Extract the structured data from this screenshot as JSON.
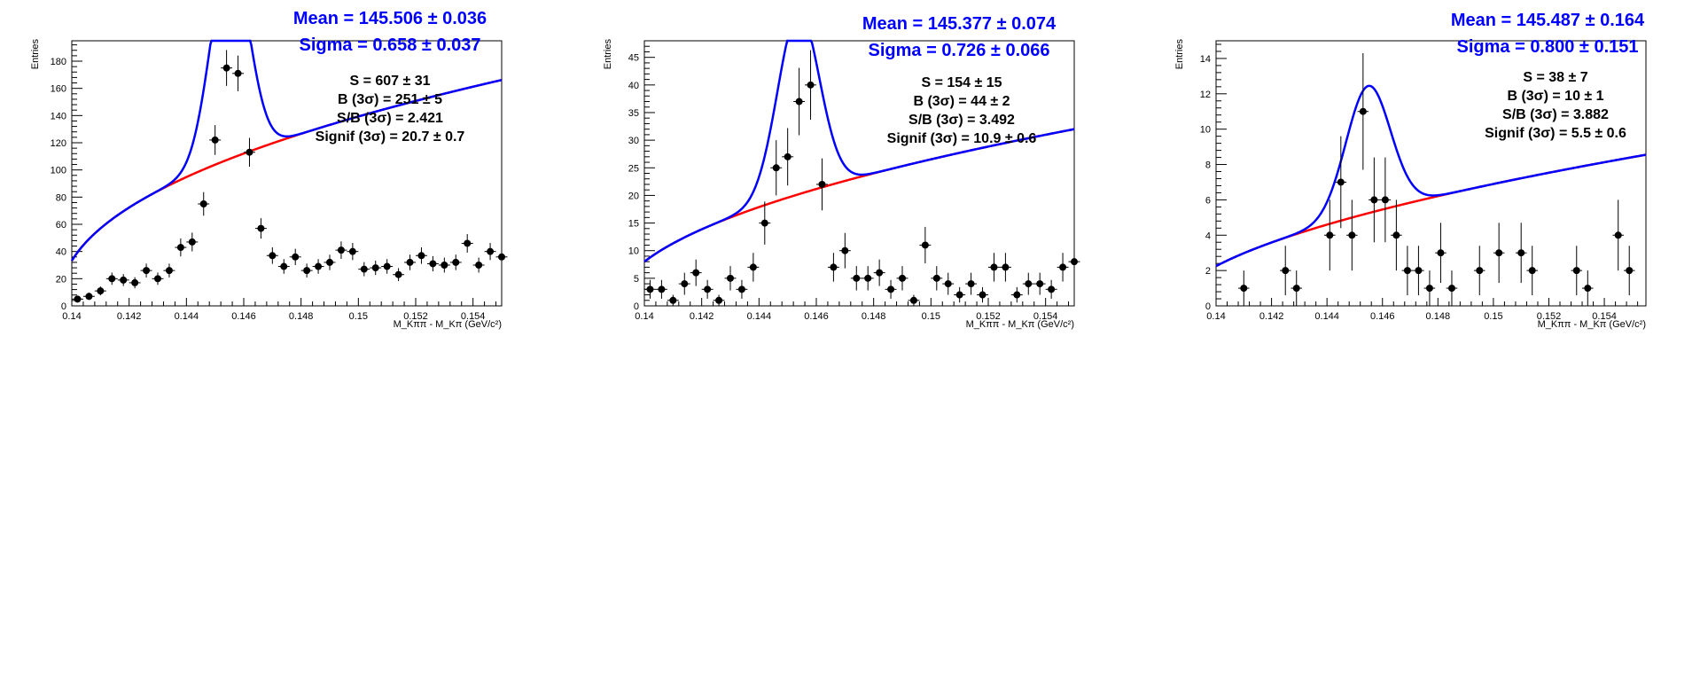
{
  "colors": {
    "fit_total": "#0000ff",
    "fit_background": "#ff0000",
    "points": "#000000",
    "text_blue": "#0000ff"
  },
  "chart_data": [
    {
      "type": "scatter",
      "fit_labels": {
        "mean": "Mean = 145.506 ± 0.036",
        "sigma": "Sigma = 0.658 ± 0.037"
      },
      "stats": [
        "S = 607 ± 31",
        "B (3σ) = 251 ± 5",
        "S/B (3σ) = 2.421",
        "Signif (3σ) = 20.7 ± 0.7"
      ],
      "ylabel": "Entries",
      "xlabel": "M_Kππ - M_Kπ (GeV/c²)",
      "xlim": [
        0.14,
        0.155
      ],
      "ylim": [
        0,
        195
      ],
      "xticks": [
        "0.14",
        "0.142",
        "0.144",
        "0.146",
        "0.148",
        "0.15",
        "0.152",
        "0.154"
      ],
      "xtick_values": [
        0.14,
        0.142,
        0.144,
        0.146,
        0.148,
        0.15,
        0.152,
        0.154
      ],
      "yticks": [
        "0",
        "20",
        "40",
        "60",
        "80",
        "100",
        "120",
        "140",
        "160",
        "180"
      ],
      "ytick_values": [
        0,
        20,
        40,
        60,
        80,
        100,
        120,
        140,
        160,
        180
      ],
      "x": [
        0.1402,
        0.1406,
        0.141,
        0.1414,
        0.1418,
        0.1422,
        0.1426,
        0.143,
        0.1434,
        0.1438,
        0.1442,
        0.1446,
        0.145,
        0.1454,
        0.1458,
        0.1462,
        0.1466,
        0.147,
        0.1474,
        0.1478,
        0.1482,
        0.1486,
        0.149,
        0.1494,
        0.1498,
        0.1502,
        0.1506,
        0.151,
        0.1514,
        0.1518,
        0.1522,
        0.1526,
        0.153,
        0.1534,
        0.1538,
        0.1542,
        0.1546,
        0.155
      ],
      "y": [
        5,
        7,
        11,
        20,
        19,
        17,
        26,
        20,
        26,
        43,
        47,
        75,
        122,
        175,
        171,
        113,
        57,
        37,
        29,
        36,
        26,
        29,
        32,
        41,
        40,
        27,
        28,
        29,
        23,
        32,
        37,
        31,
        30,
        32,
        46,
        30,
        40,
        36
      ],
      "y_err": [
        2.2,
        2.6,
        3.3,
        4.5,
        4.4,
        4.1,
        5.1,
        4.5,
        5.1,
        6.6,
        6.9,
        8.7,
        11.0,
        13.2,
        13.1,
        10.6,
        7.5,
        6.1,
        5.4,
        6.0,
        5.1,
        5.4,
        5.7,
        6.4,
        6.3,
        5.2,
        5.3,
        5.4,
        4.8,
        5.7,
        6.1,
        5.6,
        5.5,
        5.7,
        6.8,
        5.5,
        6.3,
        6.0
      ],
      "fit": {
        "mean": 0.145506,
        "sigma": 0.000658,
        "amplitude": 151,
        "bkg_coef": 48.5,
        "bkg_power": 0.45,
        "threshold": 0.13957
      }
    },
    {
      "type": "scatter",
      "fit_labels": {
        "mean": "Mean = 145.377 ± 0.074",
        "sigma": "Sigma = 0.726 ± 0.066"
      },
      "stats": [
        "S = 154 ± 15",
        "B (3σ) = 44 ± 2",
        "S/B (3σ) = 3.492",
        "Signif (3σ) = 10.9 ± 0.6"
      ],
      "ylabel": "Entries",
      "xlabel": "M_Kππ - M_Kπ (GeV/c²)",
      "xlim": [
        0.14,
        0.155
      ],
      "ylim": [
        0,
        48
      ],
      "xticks": [
        "0.14",
        "0.142",
        "0.144",
        "0.146",
        "0.148",
        "0.15",
        "0.152",
        "0.154"
      ],
      "xtick_values": [
        0.14,
        0.142,
        0.144,
        0.146,
        0.148,
        0.15,
        0.152,
        0.154
      ],
      "yticks": [
        "0",
        "5",
        "10",
        "15",
        "20",
        "25",
        "30",
        "35",
        "40",
        "45"
      ],
      "ytick_values": [
        0,
        5,
        10,
        15,
        20,
        25,
        30,
        35,
        40,
        45
      ],
      "x": [
        0.1402,
        0.1406,
        0.141,
        0.1414,
        0.1418,
        0.1422,
        0.1426,
        0.143,
        0.1434,
        0.1438,
        0.1442,
        0.1446,
        0.145,
        0.1454,
        0.1458,
        0.1462,
        0.1466,
        0.147,
        0.1474,
        0.1478,
        0.1482,
        0.1486,
        0.149,
        0.1494,
        0.1498,
        0.1502,
        0.1506,
        0.151,
        0.1514,
        0.1518,
        0.1522,
        0.1526,
        0.153,
        0.1534,
        0.1538,
        0.1542,
        0.1546,
        0.155
      ],
      "y": [
        3,
        3,
        1,
        4,
        6,
        3,
        1,
        5,
        3,
        7,
        15,
        25,
        27,
        37,
        40,
        22,
        7,
        10,
        5,
        5,
        6,
        3,
        5,
        1,
        11,
        5,
        4,
        2,
        4,
        2,
        7,
        7,
        2,
        4,
        4,
        3,
        7,
        8
      ],
      "y_err": [
        1.7,
        1.7,
        1.0,
        2.0,
        2.4,
        1.7,
        1.0,
        2.2,
        1.7,
        2.6,
        3.9,
        5.0,
        5.2,
        6.1,
        6.3,
        4.7,
        2.6,
        3.2,
        2.2,
        2.2,
        2.4,
        1.7,
        2.2,
        1.0,
        3.3,
        2.2,
        2.0,
        1.4,
        2.0,
        1.4,
        2.6,
        2.6,
        1.4,
        2.0,
        2.0,
        1.7,
        2.6,
        2.8
      ],
      "fit": {
        "mean": 0.145377,
        "sigma": 0.000726,
        "amplitude": 33,
        "bkg_coef": 8.0,
        "bkg_power": 0.5,
        "threshold": 0.139
      }
    },
    {
      "type": "scatter",
      "fit_labels": {
        "mean": "Mean = 145.487 ± 0.164",
        "sigma": "Sigma = 0.800 ± 0.151"
      },
      "stats": [
        "S = 38 ± 7",
        "B (3σ) = 10 ± 1",
        "S/B (3σ) = 3.882",
        "Signif (3σ) = 5.5 ± 0.6"
      ],
      "ylabel": "Entries",
      "xlabel": "M_Kππ - M_Kπ (GeV/c²)",
      "xlim": [
        0.14,
        0.1555
      ],
      "ylim": [
        0,
        15
      ],
      "xticks": [
        "0.14",
        "0.142",
        "0.144",
        "0.146",
        "0.148",
        "0.15",
        "0.152",
        "0.154"
      ],
      "xtick_values": [
        0.14,
        0.142,
        0.144,
        0.146,
        0.148,
        0.15,
        0.152,
        0.154
      ],
      "yticks": [
        "0",
        "2",
        "4",
        "6",
        "8",
        "10",
        "12",
        "14"
      ],
      "ytick_values": [
        0,
        2,
        4,
        6,
        8,
        10,
        12,
        14
      ],
      "x": [
        0.141,
        0.1425,
        0.1429,
        0.1441,
        0.1445,
        0.1449,
        0.1453,
        0.1457,
        0.1461,
        0.1465,
        0.1469,
        0.1473,
        0.1477,
        0.1481,
        0.1485,
        0.1495,
        0.1502,
        0.151,
        0.1514,
        0.153,
        0.1534,
        0.1545,
        0.1549
      ],
      "y": [
        1,
        2,
        1,
        4,
        7,
        4,
        11,
        6,
        6,
        4,
        2,
        2,
        1,
        3,
        1,
        2,
        3,
        3,
        2,
        2,
        1,
        4,
        2
      ],
      "y_err": [
        1.0,
        1.4,
        1.0,
        2.0,
        2.6,
        2.0,
        3.3,
        2.4,
        2.4,
        2.0,
        1.4,
        1.4,
        1.0,
        1.7,
        1.0,
        1.4,
        1.7,
        1.7,
        1.4,
        1.4,
        1.0,
        2.0,
        1.4
      ],
      "fit": {
        "mean": 0.145487,
        "sigma": 0.0008,
        "amplitude": 7.2,
        "bkg_coef": 1.8,
        "bkg_power": 0.55,
        "threshold": 0.1385
      }
    }
  ]
}
